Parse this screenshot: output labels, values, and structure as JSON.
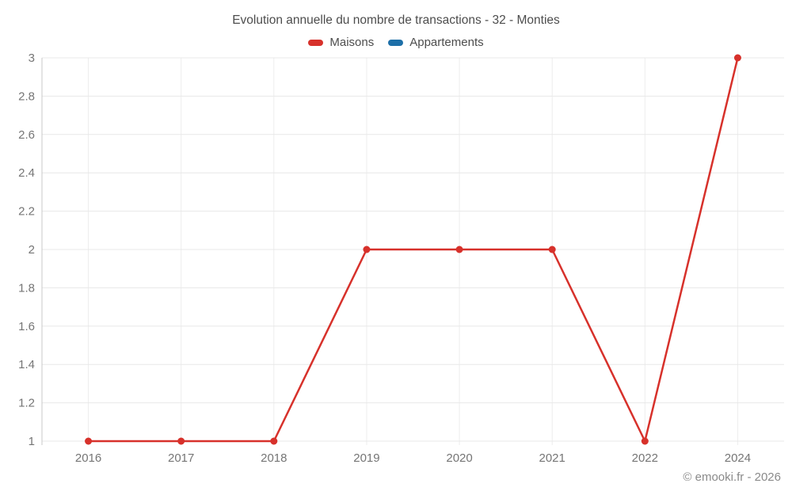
{
  "title": "Evolution annuelle du nombre de transactions - 32 - Monties",
  "legend": [
    {
      "label": "Maisons",
      "color": "#d7312b"
    },
    {
      "label": "Appartements",
      "color": "#1d6fa8"
    }
  ],
  "footer": "© emooki.fr - 2026",
  "colors": {
    "title_text": "#4d4d4d",
    "axis_label_text": "#757575",
    "grid_horizontal": "#e8e8e8",
    "grid_vertical": "#ededed",
    "axis_line": "#c9c9c9",
    "footer_text": "#8a8a8a",
    "background": "#ffffff"
  },
  "chart_data": {
    "type": "line",
    "title": "Evolution annuelle du nombre de transactions - 32 - Monties",
    "categories": [
      "2016",
      "2017",
      "2018",
      "2019",
      "2020",
      "2021",
      "2022",
      "2024"
    ],
    "series": [
      {
        "name": "Maisons",
        "color": "#d7312b",
        "values": [
          1,
          1,
          1,
          2,
          2,
          2,
          1,
          3
        ]
      },
      {
        "name": "Appartements",
        "color": "#1d6fa8",
        "values": []
      }
    ],
    "xlabel": "",
    "ylabel": "",
    "ylim": [
      1,
      3
    ],
    "ytick_step": 0.2,
    "ytick_labels": [
      "1",
      "1.2",
      "1.4",
      "1.6",
      "1.8",
      "2",
      "2.2",
      "2.4",
      "2.6",
      "2.8",
      "3"
    ],
    "grid": true,
    "legend_position": "top",
    "marker": "circle",
    "marker_radius": 4.5,
    "line_width": 2.5
  }
}
